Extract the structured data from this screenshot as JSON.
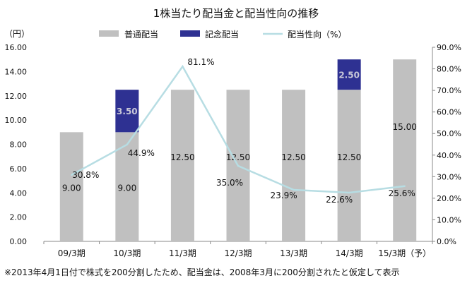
{
  "chart_data": {
    "type": "bar",
    "title": "1株当たり配当金と配当性向の推移",
    "ylabel": "（円）",
    "categories": [
      "09/3期",
      "10/3期",
      "11/3期",
      "12/3期",
      "13/3期",
      "14/3期",
      "15/3期（予）"
    ],
    "series": [
      {
        "name": "普通配当",
        "type": "bar",
        "color": "#c0c0c0",
        "values": [
          9.0,
          9.0,
          12.5,
          12.5,
          12.5,
          12.5,
          15.0
        ],
        "labels": [
          "9.00",
          "9.00",
          "12.50",
          "12.50",
          "12.50",
          "12.50",
          "15.00"
        ]
      },
      {
        "name": "記念配当",
        "type": "bar",
        "color": "#2e3192",
        "values": [
          0,
          3.5,
          0,
          0,
          0,
          2.5,
          0
        ],
        "labels": [
          "",
          "3.50",
          "",
          "",
          "",
          "2.50",
          ""
        ]
      },
      {
        "name": "配当性向（%）",
        "type": "line",
        "axis": "right",
        "color": "#b7dde3",
        "values": [
          30.8,
          44.9,
          81.1,
          35.0,
          23.9,
          22.6,
          25.6
        ],
        "labels": [
          "30.8%",
          "44.9%",
          "81.1%",
          "35.0%",
          "23.9%",
          "22.6%",
          "25.6%"
        ]
      }
    ],
    "ylim": [
      0,
      16
    ],
    "y2lim": [
      0,
      90
    ],
    "yticks": [
      "0.00",
      "2.00",
      "4.00",
      "6.00",
      "8.00",
      "10.00",
      "12.00",
      "14.00",
      "16.00"
    ],
    "y2ticks": [
      "0.0%",
      "10.0%",
      "20.0%",
      "30.0%",
      "40.0%",
      "50.0%",
      "60.0%",
      "70.0%",
      "80.0%",
      "90.0%"
    ],
    "legend": "top",
    "grid": false,
    "footnote": "※2013年4月1日付で株式を200分割したため、配当金は、2008年3月に200分割されたと仮定して表示"
  }
}
